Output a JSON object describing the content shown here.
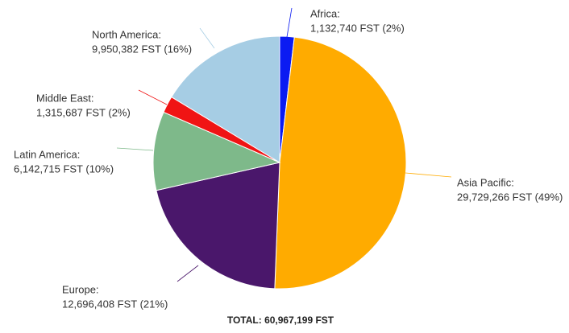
{
  "chart_data": {
    "type": "pie",
    "categories": [
      "Africa:",
      "Asia Pacific:",
      "Europe:",
      "Latin America:",
      "Middle East:",
      "North America:"
    ],
    "values": [
      1132740,
      29729266,
      12696408,
      6142715,
      1315687,
      9950382
    ],
    "value_labels": [
      "1,132,740 FST (2%)",
      "29,729,266 FST (49%)",
      "12,696,408 FST (21%)",
      "6,142,715 FST (10%)",
      "1,315,687 FST (2%)",
      "9,950,382 FST (16%)"
    ],
    "colors": [
      "#0b1bf2",
      "#ffab00",
      "#4a176b",
      "#7eb98a",
      "#f01414",
      "#a6cde4"
    ],
    "total_label": "TOTAL: 60,967,199 FST"
  }
}
